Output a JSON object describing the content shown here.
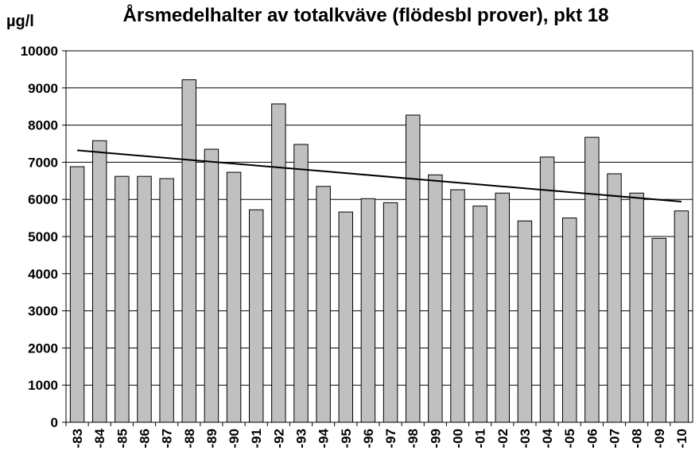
{
  "chart_data": {
    "type": "bar",
    "title": "Årsmedelhalter av totalkväve (flödesbl prover), pkt 18",
    "ylabel": "µg/l",
    "xlabel": "",
    "ylim": [
      0,
      10000
    ],
    "yticks": [
      0,
      1000,
      2000,
      3000,
      4000,
      5000,
      6000,
      7000,
      8000,
      9000,
      10000
    ],
    "grid": true,
    "categories": [
      "-83",
      "-84",
      "-85",
      "-86",
      "-87",
      "-88",
      "-89",
      "-90",
      "-91",
      "-92",
      "-93",
      "-94",
      "-95",
      "-96",
      "-97",
      "-98",
      "-99",
      "-00",
      "-01",
      "-02",
      "-03",
      "-04",
      "-05",
      "-06",
      "-07",
      "-08",
      "-09",
      "-10"
    ],
    "values": [
      6880,
      7580,
      6620,
      6620,
      6560,
      9220,
      7350,
      6730,
      5720,
      8570,
      7480,
      6350,
      5660,
      6020,
      5910,
      8270,
      6660,
      6260,
      5820,
      6170,
      5420,
      7140,
      5500,
      7670,
      6690,
      6170,
      4950,
      5690
    ],
    "trendline": {
      "type": "linear",
      "start": 7320,
      "end": 5940
    },
    "colors": {
      "bar_fill": "#c0c0c0",
      "bar_stroke": "#000000",
      "grid": "#000000",
      "trend": "#000000"
    }
  }
}
